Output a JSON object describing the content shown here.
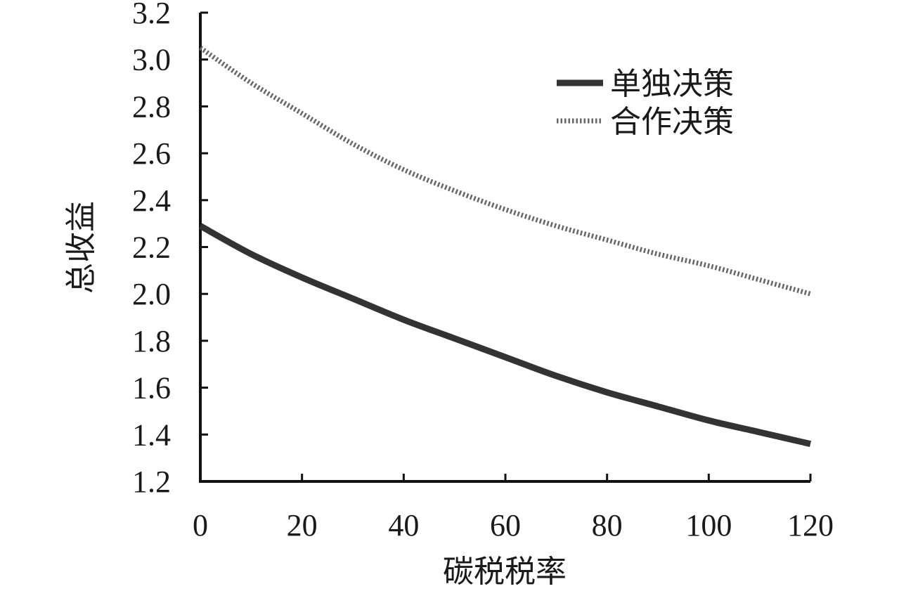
{
  "chart_data": {
    "type": "line",
    "xlabel": "碳税税率",
    "ylabel": "总收益",
    "xlim": [
      0,
      120
    ],
    "ylim": [
      1.2,
      3.2
    ],
    "x_ticks": [
      "0",
      "20",
      "40",
      "60",
      "80",
      "100",
      "120"
    ],
    "y_ticks": [
      "1.2",
      "1.4",
      "1.6",
      "1.8",
      "2.0",
      "2.2",
      "2.4",
      "2.6",
      "2.8",
      "3.0",
      "3.2"
    ],
    "grid": false,
    "legend_position": "top-right",
    "x": [
      0,
      10,
      20,
      30,
      40,
      50,
      60,
      70,
      80,
      90,
      100,
      110,
      120
    ],
    "series": [
      {
        "name": "单独决策",
        "style": "solid",
        "color": "#333333",
        "values": [
          2.29,
          2.17,
          2.07,
          1.98,
          1.89,
          1.81,
          1.73,
          1.65,
          1.58,
          1.52,
          1.46,
          1.41,
          1.36
        ]
      },
      {
        "name": "合作决策",
        "style": "dotted",
        "color": "#666666",
        "values": [
          3.05,
          2.9,
          2.77,
          2.64,
          2.53,
          2.44,
          2.36,
          2.29,
          2.23,
          2.17,
          2.12,
          2.06,
          2.0
        ]
      }
    ]
  }
}
